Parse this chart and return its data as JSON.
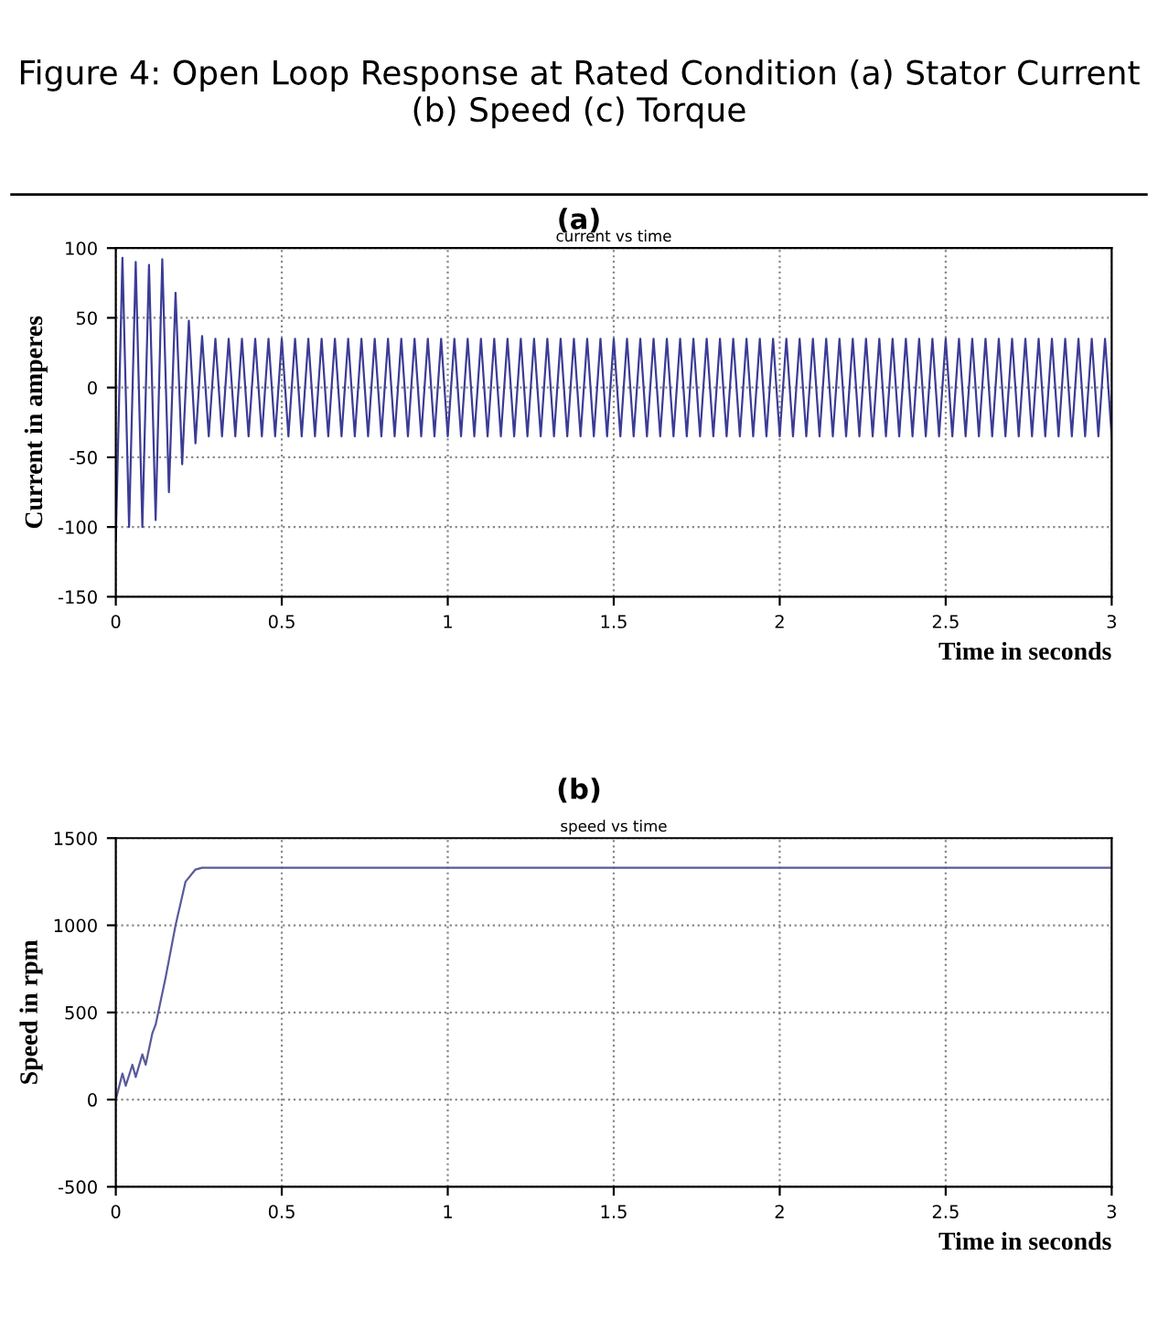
{
  "chart_data": [
    {
      "type": "line",
      "title": "Figure 4: Open Loop Response at Rated Condition (a) Stator Current (b) Speed (c) Torque",
      "subtitle": "(a)",
      "annotations": [
        "current vs time"
      ],
      "xlabel": "Time in seconds",
      "ylabel": "Current in amperes",
      "xlim": [
        0,
        3
      ],
      "xticks": [
        0,
        0.5,
        1,
        1.5,
        2,
        2.5,
        3
      ],
      "ylim": [
        -150,
        100
      ],
      "yticks": [
        -150,
        -100,
        -50,
        0,
        50,
        100
      ],
      "grid": true,
      "line_style": "solid",
      "series": [
        {
          "color": "#3c3c96",
          "x": [
            0,
            0.02,
            0.04,
            0.06,
            0.08,
            0.1,
            0.12,
            0.14,
            0.16,
            0.18,
            0.2,
            0.22,
            0.24,
            0.26,
            0.28,
            0.3,
            0.32,
            0.34,
            0.36,
            0.38,
            0.4,
            0.42,
            0.44,
            0.46,
            0.48,
            0.5,
            0.52,
            0.54,
            0.56,
            0.58,
            0.6,
            0.62,
            0.64,
            0.66,
            0.68,
            0.7,
            0.72,
            0.74,
            0.76,
            0.78,
            0.8,
            0.82,
            0.84,
            0.86,
            0.88,
            0.9,
            0.92,
            0.94,
            0.96,
            0.98,
            1,
            1.02,
            1.04,
            1.06,
            1.08,
            1.1,
            1.12,
            1.14,
            1.16,
            1.18,
            1.2,
            1.22,
            1.24,
            1.26,
            1.28,
            1.3,
            1.32,
            1.34,
            1.36,
            1.38,
            1.4,
            1.42,
            1.44,
            1.46,
            1.48,
            1.5,
            1.52,
            1.54,
            1.56,
            1.58,
            1.6,
            1.62,
            1.64,
            1.66,
            1.68,
            1.7,
            1.72,
            1.74,
            1.76,
            1.78,
            1.8,
            1.82,
            1.84,
            1.86,
            1.88,
            1.9,
            1.92,
            1.94,
            1.96,
            1.98,
            2,
            2.02,
            2.04,
            2.06,
            2.08,
            2.1,
            2.12,
            2.14,
            2.16,
            2.18,
            2.2,
            2.22,
            2.24,
            2.26,
            2.28,
            2.3,
            2.32,
            2.34,
            2.36,
            2.38,
            2.4,
            2.42,
            2.44,
            2.46,
            2.48,
            2.5,
            2.52,
            2.54,
            2.56,
            2.58,
            2.6,
            2.62,
            2.64,
            2.66,
            2.68,
            2.7,
            2.72,
            2.74,
            2.76,
            2.78,
            2.8,
            2.82,
            2.84,
            2.86,
            2.88,
            2.9,
            2.92,
            2.94,
            2.96,
            2.98,
            3
          ],
          "values": [
            -110,
            93,
            -100,
            90,
            -100,
            88,
            -95,
            92,
            -75,
            68,
            -55,
            48,
            -40,
            37,
            -35,
            35,
            -35,
            35,
            -35,
            35,
            -35,
            35,
            -35,
            35,
            -35,
            35,
            -35,
            35,
            -35,
            35,
            -35,
            35,
            -35,
            35,
            -35,
            35,
            -35,
            35,
            -35,
            35,
            -35,
            35,
            -35,
            35,
            -35,
            35,
            -35,
            35,
            -35,
            35,
            -35,
            35,
            -35,
            35,
            -35,
            35,
            -35,
            35,
            -35,
            35,
            -35,
            35,
            -35,
            35,
            -35,
            35,
            -35,
            35,
            -35,
            35,
            -35,
            35,
            -35,
            35,
            -35,
            35,
            -35,
            35,
            -35,
            35,
            -35,
            35,
            -35,
            35,
            -35,
            35,
            -35,
            35,
            -35,
            35,
            -35,
            35,
            -35,
            35,
            -35,
            35,
            -35,
            35,
            -35,
            35,
            -35,
            35,
            -35,
            35,
            -35,
            35,
            -35,
            35,
            -35,
            35,
            -35,
            35,
            -35,
            35,
            -35,
            35,
            -35,
            35,
            -35,
            35,
            -35,
            35,
            -35,
            35,
            -35,
            35,
            -35,
            35,
            -35,
            35,
            -35,
            35,
            -35,
            35,
            -35,
            35,
            -35,
            35,
            -35,
            35,
            -35,
            35,
            -35,
            35,
            -35,
            35,
            -35,
            35,
            -35,
            35,
            -35
          ]
        }
      ]
    },
    {
      "type": "line",
      "title": "(b)",
      "annotations": [
        "speed vs time"
      ],
      "xlabel": "Time in seconds",
      "ylabel": "Speed in rpm",
      "xlim": [
        0,
        3
      ],
      "xticks": [
        0,
        0.5,
        1,
        1.5,
        2,
        2.5,
        3
      ],
      "ylim": [
        -500,
        1500
      ],
      "yticks": [
        -500,
        0,
        500,
        1000,
        1500
      ],
      "grid": true,
      "line_style": "solid",
      "series": [
        {
          "color": "#5a5a9a",
          "x": [
            0,
            0.02,
            0.03,
            0.05,
            0.06,
            0.08,
            0.09,
            0.11,
            0.12,
            0.15,
            0.18,
            0.21,
            0.24,
            0.26,
            3
          ],
          "values": [
            0,
            150,
            80,
            200,
            130,
            260,
            200,
            380,
            430,
            700,
            1000,
            1250,
            1320,
            1330,
            1330
          ]
        }
      ]
    }
  ]
}
